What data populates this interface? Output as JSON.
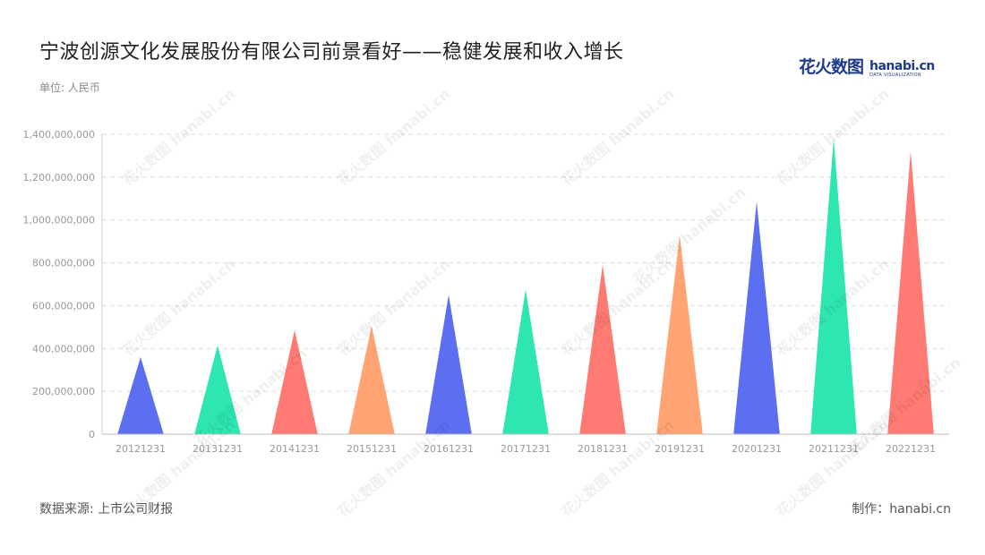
{
  "title": "宁波创源文化发展股份有限公司前景看好——稳健发展和收入增长",
  "unit": "单位: 人民币",
  "source": "数据来源: 上市公司财报",
  "credit": "制作：hanabi.cn",
  "logo": {
    "cn": "花火数图",
    "en": "hanabi.cn",
    "sub": "DATA VISUALIZATION"
  },
  "watermark": "花火数图 hanabi.cn",
  "colors": [
    "#5b6ff0",
    "#2ee6b0",
    "#ff7a72",
    "#ffa472"
  ],
  "chart_data": {
    "type": "bar",
    "bar_shape": "triangle",
    "categories": [
      "20121231",
      "20131231",
      "20141231",
      "20151231",
      "20161231",
      "20171231",
      "20181231",
      "20191231",
      "20201231",
      "20211231",
      "20221231"
    ],
    "values": [
      360000000,
      415000000,
      485000000,
      505000000,
      650000000,
      675000000,
      790000000,
      930000000,
      1085000000,
      1380000000,
      1320000000
    ],
    "ylim": [
      0,
      1400000000
    ],
    "yticks": [
      "0",
      "200,000,000",
      "400,000,000",
      "600,000,000",
      "800,000,000",
      "1,000,000,000",
      "1,200,000,000",
      "1,400,000,000"
    ],
    "grid": true,
    "xlabel": "",
    "ylabel": ""
  }
}
